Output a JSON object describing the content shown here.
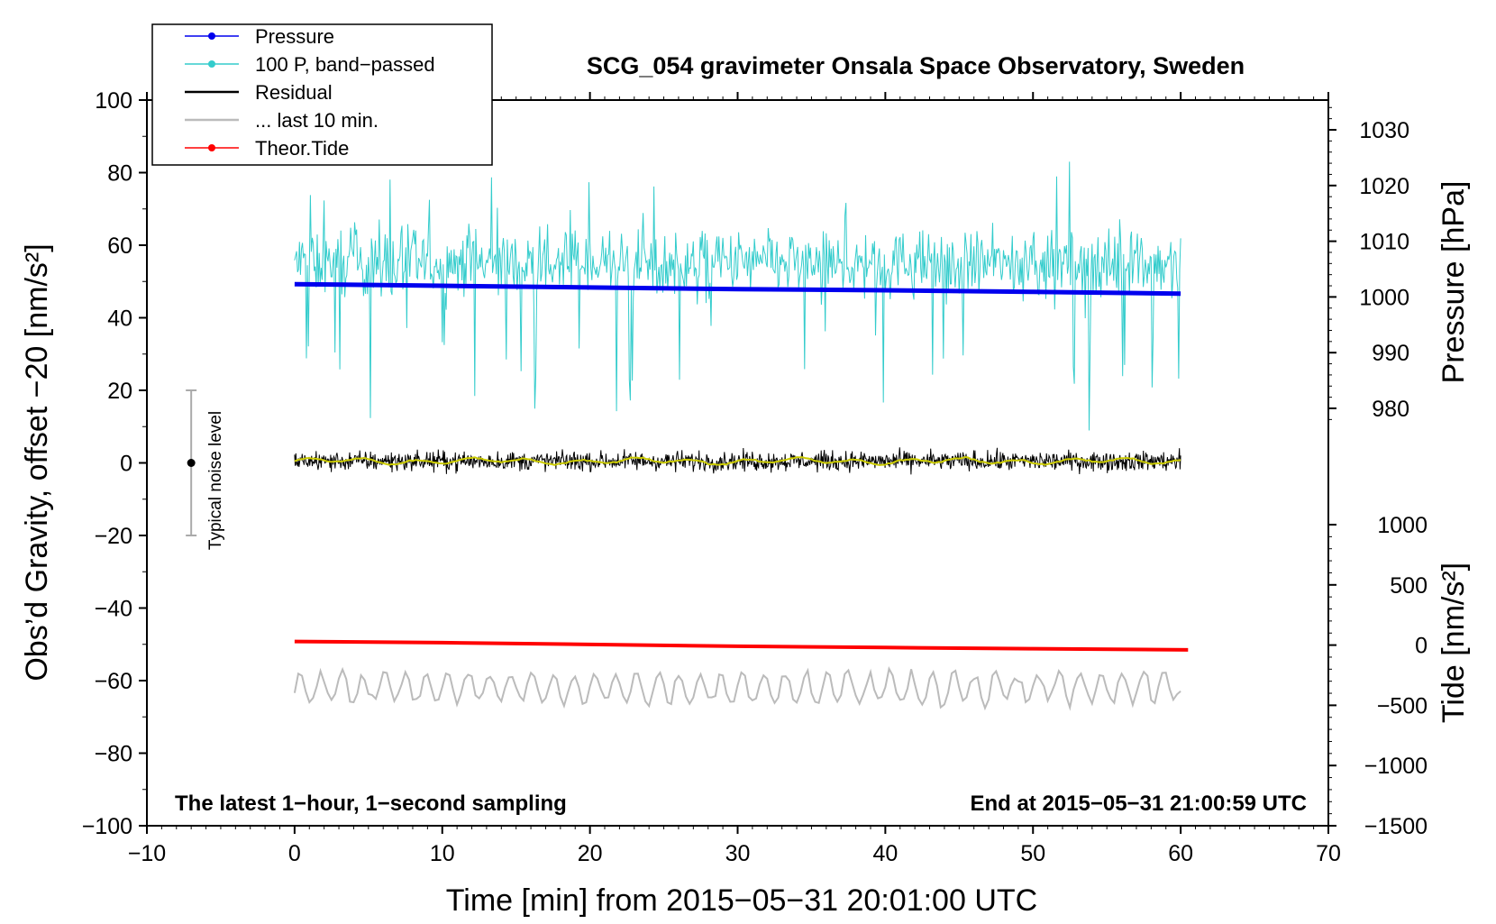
{
  "chart_data": {
    "type": "line",
    "title": "SCG_054 gravimeter Onsala Space Observatory, Sweden",
    "xlabel": "Time [min] from 2015−05−31 20:01:00 UTC",
    "ylabel_left": "Obs’d Gravity, offset −20 [nm/s²]",
    "ylabel_right_pressure": "Pressure [hPa]",
    "ylabel_right_tide": "Tide [nm/s²]",
    "note_left": "The latest 1−hour, 1−second sampling",
    "note_right": "End at 2015−05−31 21:00:59 UTC",
    "xlim": [
      -10,
      70
    ],
    "ylim": [
      -100,
      100
    ],
    "x_ticks": [
      "−10",
      "0",
      "10",
      "20",
      "30",
      "40",
      "50",
      "60",
      "70"
    ],
    "y_ticks": [
      "100",
      "80",
      "60",
      "40",
      "20",
      "0",
      "−20",
      "−40",
      "−60",
      "−80",
      "−100"
    ],
    "pressure_ticks": [
      "1030",
      "1020",
      "1010",
      "1000",
      "990",
      "980"
    ],
    "tide_ticks": [
      "1000",
      "500",
      "0",
      "−500",
      "−1000",
      "−1500"
    ],
    "legend": {
      "position": "top-left",
      "entries": [
        "Pressure",
        "100 P, band−passed",
        "Residual",
        "... last 10 min.",
        "Theor.Tide"
      ]
    },
    "noise_bar": {
      "x": -7,
      "center": 0,
      "half_range": 20,
      "label": "Typical noise level"
    },
    "series": [
      {
        "name": "Pressure",
        "color": "#0000ee",
        "axis": "pressure_hPa",
        "x": [
          0,
          10,
          20,
          30,
          40,
          50,
          60
        ],
        "values": [
          1002.3,
          1002.0,
          1001.7,
          1001.4,
          1001.2,
          1000.9,
          1000.6
        ]
      },
      {
        "name": "100 P, band−passed",
        "color": "#33cccc",
        "axis": "gravity",
        "x": [
          0,
          60
        ],
        "mean": 55,
        "noise_amplitude": 15,
        "min": 5,
        "max": 83
      },
      {
        "name": "Residual",
        "color": "#000000",
        "axis": "gravity",
        "x": [
          0,
          60
        ],
        "mean": 0.5,
        "noise_amplitude": 4,
        "min": -9,
        "max": 10
      },
      {
        "name": "Residual smoothed",
        "color": "#cccc00",
        "axis": "gravity",
        "x": [
          0,
          60
        ],
        "mean": 0.5
      },
      {
        "name": "... last 10 min.",
        "color": "#bbbbbb",
        "axis": "gravity",
        "x": [
          0,
          60
        ],
        "mean": -62,
        "noise_amplitude": 5,
        "min": -70,
        "max": -54
      },
      {
        "name": "Theor.Tide",
        "color": "#ff0000",
        "axis": "tide_nms2",
        "x": [
          0,
          10,
          20,
          30,
          40,
          50,
          60.5
        ],
        "values": [
          30,
          20,
          5,
          -10,
          -20,
          -30,
          -40
        ]
      }
    ],
    "pressure_axis_range": [
      967,
      1030
    ],
    "tide_axis_range": [
      -1500,
      1000
    ]
  }
}
